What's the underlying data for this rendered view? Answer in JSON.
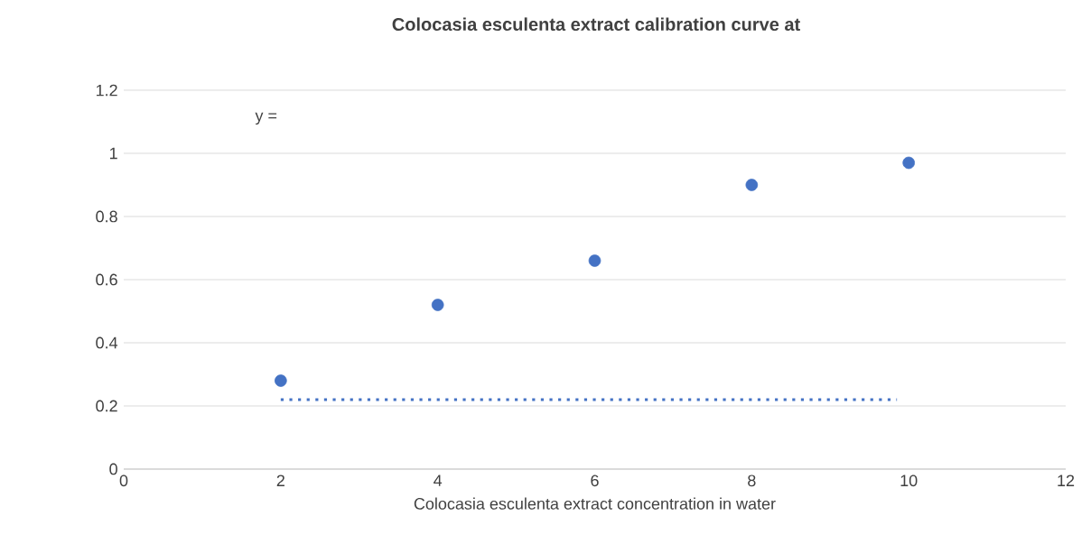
{
  "chart_data": {
    "type": "scatter",
    "title": "Colocasia esculenta extract calibration curve at",
    "xlabel": "Colocasia esculenta extract concentration in water",
    "annotations": [
      "y ="
    ],
    "series": [
      {
        "color": "#4472c4",
        "marker": "circle",
        "x": [
          2,
          4,
          6,
          8,
          10
        ],
        "values": [
          0.28,
          0.52,
          0.66,
          0.9,
          0.97
        ]
      },
      {
        "type": "line",
        "color": "#4472c4",
        "marker": "none",
        "line_style": "dotted",
        "x": [
          2,
          9.85
        ],
        "values": [
          0.22,
          0.22
        ]
      }
    ],
    "xlim": [
      0,
      12
    ],
    "ylim": [
      0,
      1.2
    ],
    "xticks": [
      0,
      2,
      4,
      6,
      8,
      10,
      12
    ],
    "yticks": [
      0,
      0.2,
      0.4,
      0.6,
      0.8,
      1,
      1.2
    ],
    "grid": "y"
  }
}
